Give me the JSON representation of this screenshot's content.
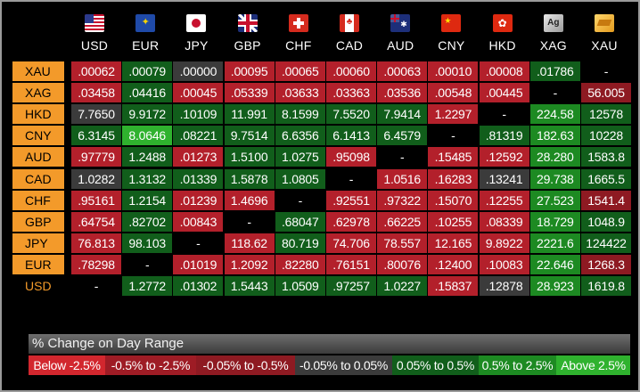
{
  "columns": [
    {
      "code": "USD",
      "icon": "us-flag-icon"
    },
    {
      "code": "EUR",
      "icon": "eu-flag-icon"
    },
    {
      "code": "JPY",
      "icon": "japan-flag-icon"
    },
    {
      "code": "GBP",
      "icon": "uk-flag-icon"
    },
    {
      "code": "CHF",
      "icon": "swiss-flag-icon"
    },
    {
      "code": "CAD",
      "icon": "canada-flag-icon"
    },
    {
      "code": "AUD",
      "icon": "australia-flag-icon"
    },
    {
      "code": "CNY",
      "icon": "china-flag-icon"
    },
    {
      "code": "HKD",
      "icon": "hong-kong-flag-icon"
    },
    {
      "code": "XAG",
      "icon": "silver-bar-icon",
      "badge": "Ag"
    },
    {
      "code": "XAU",
      "icon": "gold-bar-icon"
    }
  ],
  "rows": [
    {
      "label": "XAU",
      "cells": [
        [
          ".00062",
          "red"
        ],
        [
          ".00079",
          "dgreen"
        ],
        [
          ".00000",
          "gray"
        ],
        [
          ".00095",
          "red"
        ],
        [
          ".00065",
          "red"
        ],
        [
          ".00060",
          "red"
        ],
        [
          ".00063",
          "red"
        ],
        [
          ".00010",
          "red"
        ],
        [
          ".00008",
          "red"
        ],
        [
          ".01786",
          "dgreen"
        ],
        [
          "-",
          "black"
        ]
      ]
    },
    {
      "label": "XAG",
      "cells": [
        [
          ".03458",
          "red"
        ],
        [
          ".04416",
          "dgreen"
        ],
        [
          ".00045",
          "red"
        ],
        [
          ".05339",
          "red"
        ],
        [
          ".03633",
          "red"
        ],
        [
          ".03363",
          "red"
        ],
        [
          ".03536",
          "red"
        ],
        [
          ".00548",
          "red"
        ],
        [
          ".00445",
          "red"
        ],
        [
          "-",
          "black"
        ],
        [
          "56.005",
          "dred"
        ]
      ]
    },
    {
      "label": "HKD",
      "cells": [
        [
          "7.7650",
          "gray"
        ],
        [
          "9.9172",
          "dgreen"
        ],
        [
          ".10109",
          "dgreen"
        ],
        [
          "11.991",
          "dgreen"
        ],
        [
          "8.1599",
          "dgreen"
        ],
        [
          "7.5520",
          "dgreen"
        ],
        [
          "7.9414",
          "dgreen"
        ],
        [
          "1.2297",
          "red"
        ],
        [
          "-",
          "black"
        ],
        [
          "224.58",
          "green"
        ],
        [
          "12578",
          "dgreen"
        ]
      ]
    },
    {
      "label": "CNY",
      "cells": [
        [
          "6.3145",
          "dgreen"
        ],
        [
          "8.0646",
          "lgreen"
        ],
        [
          ".08221",
          "dgreen"
        ],
        [
          "9.7514",
          "dgreen"
        ],
        [
          "6.6356",
          "dgreen"
        ],
        [
          "6.1413",
          "dgreen"
        ],
        [
          "6.4579",
          "dgreen"
        ],
        [
          "-",
          "black"
        ],
        [
          ".81319",
          "dgreen"
        ],
        [
          "182.63",
          "green"
        ],
        [
          "10228",
          "dgreen"
        ]
      ]
    },
    {
      "label": "AUD",
      "cells": [
        [
          ".97779",
          "red"
        ],
        [
          "1.2488",
          "dgreen"
        ],
        [
          ".01273",
          "red"
        ],
        [
          "1.5100",
          "dgreen"
        ],
        [
          "1.0275",
          "dgreen"
        ],
        [
          ".95098",
          "red"
        ],
        [
          "-",
          "black"
        ],
        [
          ".15485",
          "red"
        ],
        [
          ".12592",
          "red"
        ],
        [
          "28.280",
          "green"
        ],
        [
          "1583.8",
          "dgreen"
        ]
      ]
    },
    {
      "label": "CAD",
      "cells": [
        [
          "1.0282",
          "gray"
        ],
        [
          "1.3132",
          "dgreen"
        ],
        [
          ".01339",
          "dgreen"
        ],
        [
          "1.5878",
          "dgreen"
        ],
        [
          "1.0805",
          "dgreen"
        ],
        [
          "-",
          "black"
        ],
        [
          "1.0516",
          "red"
        ],
        [
          ".16283",
          "red"
        ],
        [
          ".13241",
          "gray"
        ],
        [
          "29.738",
          "green"
        ],
        [
          "1665.5",
          "dgreen"
        ]
      ]
    },
    {
      "label": "CHF",
      "cells": [
        [
          ".95161",
          "red"
        ],
        [
          "1.2154",
          "dgreen"
        ],
        [
          ".01239",
          "red"
        ],
        [
          "1.4696",
          "red"
        ],
        [
          "-",
          "black"
        ],
        [
          ".92551",
          "red"
        ],
        [
          ".97322",
          "red"
        ],
        [
          ".15070",
          "red"
        ],
        [
          ".12255",
          "red"
        ],
        [
          "27.523",
          "green"
        ],
        [
          "1541.4",
          "dred"
        ]
      ]
    },
    {
      "label": "GBP",
      "cells": [
        [
          ".64754",
          "red"
        ],
        [
          ".82702",
          "dgreen"
        ],
        [
          ".00843",
          "red"
        ],
        [
          "-",
          "black"
        ],
        [
          ".68047",
          "dgreen"
        ],
        [
          ".62978",
          "red"
        ],
        [
          ".66225",
          "red"
        ],
        [
          ".10255",
          "red"
        ],
        [
          ".08339",
          "red"
        ],
        [
          "18.729",
          "green"
        ],
        [
          "1048.9",
          "dgreen"
        ]
      ]
    },
    {
      "label": "JPY",
      "cells": [
        [
          "76.813",
          "red"
        ],
        [
          "98.103",
          "dgreen"
        ],
        [
          "-",
          "black"
        ],
        [
          "118.62",
          "red"
        ],
        [
          "80.719",
          "dgreen"
        ],
        [
          "74.706",
          "red"
        ],
        [
          "78.557",
          "red"
        ],
        [
          "12.165",
          "red"
        ],
        [
          "9.8922",
          "red"
        ],
        [
          "2221.6",
          "green"
        ],
        [
          "124422",
          "dgreen"
        ]
      ]
    },
    {
      "label": "EUR",
      "cells": [
        [
          ".78298",
          "red"
        ],
        [
          "-",
          "black"
        ],
        [
          ".01019",
          "red"
        ],
        [
          "1.2092",
          "red"
        ],
        [
          ".82280",
          "red"
        ],
        [
          ".76151",
          "red"
        ],
        [
          ".80076",
          "red"
        ],
        [
          ".12400",
          "red"
        ],
        [
          ".10083",
          "red"
        ],
        [
          "22.646",
          "green"
        ],
        [
          "1268.3",
          "dred"
        ]
      ]
    },
    {
      "label": "USD",
      "plain": true,
      "cells": [
        [
          "-",
          "black"
        ],
        [
          "1.2772",
          "dgreen"
        ],
        [
          ".01302",
          "dgreen"
        ],
        [
          "1.5443",
          "dgreen"
        ],
        [
          "1.0509",
          "dgreen"
        ],
        [
          ".97257",
          "dgreen"
        ],
        [
          "1.0227",
          "dgreen"
        ],
        [
          ".15837",
          "red"
        ],
        [
          ".12878",
          "gray"
        ],
        [
          "28.923",
          "green"
        ],
        [
          "1619.8",
          "dgreen"
        ]
      ]
    }
  ],
  "legend": {
    "title": "% Change on Day Range",
    "items": [
      {
        "label": "Below -2.5%",
        "color": "#d2272e"
      },
      {
        "label": "-0.5% to -2.5%",
        "color": "#9e1c25"
      },
      {
        "label": "-0.05% to -0.5%",
        "color": "#8e1a22"
      },
      {
        "label": "-0.05% to 0.05%",
        "color": "#3b3b3b"
      },
      {
        "label": "0.05% to 0.5%",
        "color": "#115e1b"
      },
      {
        "label": "0.5% to 2.5%",
        "color": "#1d8a22"
      },
      {
        "label": "Above 2.5%",
        "color": "#2fb22e"
      }
    ]
  }
}
